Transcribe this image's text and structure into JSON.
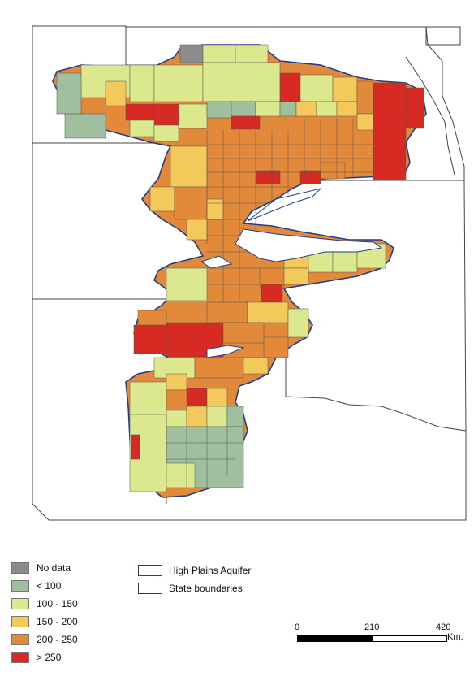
{
  "legend": {
    "classes": [
      {
        "label": "No data",
        "color": "#8c8c8c"
      },
      {
        "label": "< 100",
        "color": "#9fbf9f"
      },
      {
        "label": "100 - 150",
        "color": "#dce88d"
      },
      {
        "label": "150 - 200",
        "color": "#f2c95a"
      },
      {
        "label": "200 - 250",
        "color": "#e38a3a"
      },
      {
        "label": "> 250",
        "color": "#d62a22"
      }
    ],
    "boundaries": [
      {
        "label": "High Plains Aquifer",
        "stroke": "#1f3d8a"
      },
      {
        "label": "State boundaries",
        "stroke": "#333333"
      }
    ]
  },
  "scale_bar": {
    "ticks": [
      "0",
      "210",
      "420"
    ],
    "unit": "Km."
  }
}
